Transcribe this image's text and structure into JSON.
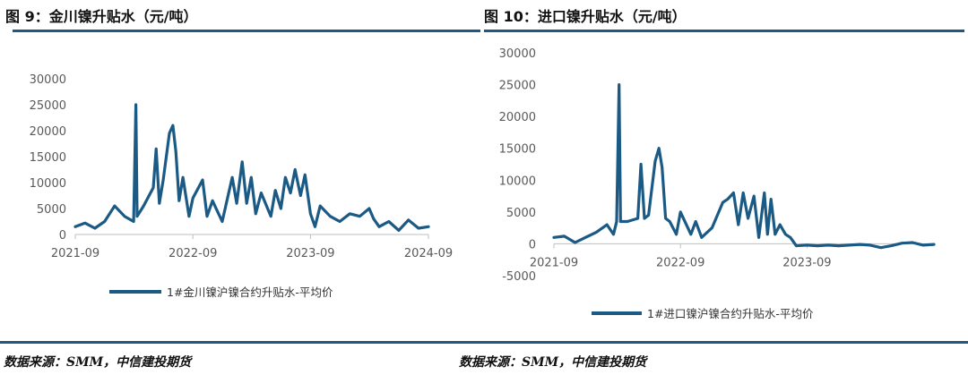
{
  "figures": [
    {
      "title": "图 9：金川镍升贴水（元/吨）",
      "source": "数据来源：SMM，中信建投期货"
    },
    {
      "title": "图 10：进口镍升贴水（元/吨）",
      "source": "数据来源：SMM，中信建投期货"
    }
  ],
  "colors": {
    "rule": "#1f5785",
    "series": "#1a5a84",
    "axis": "#bfbfbf"
  },
  "chart_data": [
    {
      "type": "line",
      "title": "",
      "xlabel": "",
      "ylabel": "",
      "ylim": [
        0,
        30000
      ],
      "yticks": [
        0,
        5000,
        10000,
        15000,
        20000,
        25000,
        30000
      ],
      "xlim": [
        "2021-09",
        "2024-09"
      ],
      "xticks": [
        "2021-09",
        "2022-09",
        "2023-09",
        "2024-09"
      ],
      "grid": false,
      "legend_position": "bottom",
      "series": [
        {
          "name": "1#金川镍沪镍合约升贴水-平均价",
          "points": [
            [
              "2021-09",
              1500
            ],
            [
              "2021-10",
              2200
            ],
            [
              "2021-11",
              1200
            ],
            [
              "2021-12",
              2500
            ],
            [
              "2022-01",
              5500
            ],
            [
              "2022-02",
              3500
            ],
            [
              "2022-03-01",
              2500
            ],
            [
              "2022-03-08",
              25000
            ],
            [
              "2022-03-12",
              3500
            ],
            [
              "2022-04",
              5500
            ],
            [
              "2022-05-01",
              9000
            ],
            [
              "2022-05-10",
              16500
            ],
            [
              "2022-05-20",
              6000
            ],
            [
              "2022-06",
              10500
            ],
            [
              "2022-06-20",
              19500
            ],
            [
              "2022-07-01",
              21000
            ],
            [
              "2022-07-10",
              16000
            ],
            [
              "2022-07-20",
              6500
            ],
            [
              "2022-08",
              11000
            ],
            [
              "2022-08-20",
              3500
            ],
            [
              "2022-09",
              7000
            ],
            [
              "2022-10-01",
              10500
            ],
            [
              "2022-10-15",
              3500
            ],
            [
              "2022-11",
              6500
            ],
            [
              "2022-12-01",
              2500
            ],
            [
              "2022-12-10",
              5000
            ],
            [
              "2023-01-01",
              11000
            ],
            [
              "2023-01-15",
              6000
            ],
            [
              "2023-02-01",
              14000
            ],
            [
              "2023-02-15",
              6000
            ],
            [
              "2023-03-01",
              11000
            ],
            [
              "2023-03-15",
              4000
            ],
            [
              "2023-04",
              8000
            ],
            [
              "2023-05-01",
              3500
            ],
            [
              "2023-05-15",
              8500
            ],
            [
              "2023-06-01",
              5000
            ],
            [
              "2023-06-15",
              11000
            ],
            [
              "2023-07-01",
              8000
            ],
            [
              "2023-07-15",
              12500
            ],
            [
              "2023-08-01",
              7500
            ],
            [
              "2023-08-15",
              11500
            ],
            [
              "2023-09-01",
              4000
            ],
            [
              "2023-09-15",
              1500
            ],
            [
              "2023-10",
              5500
            ],
            [
              "2023-11",
              3500
            ],
            [
              "2023-12",
              2500
            ],
            [
              "2024-01",
              4000
            ],
            [
              "2024-02",
              3500
            ],
            [
              "2024-03-01",
              5000
            ],
            [
              "2024-03-15",
              3000
            ],
            [
              "2024-04",
              1500
            ],
            [
              "2024-05",
              2500
            ],
            [
              "2024-06",
              800
            ],
            [
              "2024-07",
              2800
            ],
            [
              "2024-08",
              1200
            ],
            [
              "2024-09",
              1500
            ]
          ]
        }
      ]
    },
    {
      "type": "line",
      "title": "",
      "xlabel": "",
      "ylabel": "",
      "ylim": [
        -5000,
        30000
      ],
      "yticks": [
        -5000,
        0,
        5000,
        10000,
        15000,
        20000,
        25000,
        30000
      ],
      "xlim": [
        "2021-09",
        "2024-09"
      ],
      "xticks": [
        "2021-09",
        "2022-09",
        "2023-09"
      ],
      "grid": false,
      "legend_position": "bottom",
      "series": [
        {
          "name": "1#进口镍沪镍合约升贴水-平均价",
          "points": [
            [
              "2021-09",
              1000
            ],
            [
              "2021-10",
              1200
            ],
            [
              "2021-11",
              200
            ],
            [
              "2021-12",
              1000
            ],
            [
              "2022-01",
              1800
            ],
            [
              "2022-02",
              3000
            ],
            [
              "2022-02-20",
              1500
            ],
            [
              "2022-03-01",
              3500
            ],
            [
              "2022-03-08",
              25000
            ],
            [
              "2022-03-12",
              3500
            ],
            [
              "2022-04",
              3500
            ],
            [
              "2022-05-01",
              4000
            ],
            [
              "2022-05-10",
              12500
            ],
            [
              "2022-05-20",
              4000
            ],
            [
              "2022-06",
              4500
            ],
            [
              "2022-06-20",
              13000
            ],
            [
              "2022-07-01",
              15000
            ],
            [
              "2022-07-10",
              12000
            ],
            [
              "2022-07-20",
              4000
            ],
            [
              "2022-08",
              3500
            ],
            [
              "2022-08-20",
              1500
            ],
            [
              "2022-09",
              5000
            ],
            [
              "2022-10-01",
              1500
            ],
            [
              "2022-10-15",
              3500
            ],
            [
              "2022-11",
              1000
            ],
            [
              "2022-12",
              2500
            ],
            [
              "2023-01-01",
              6500
            ],
            [
              "2023-01-15",
              7000
            ],
            [
              "2023-02-01",
              8000
            ],
            [
              "2023-02-15",
              3000
            ],
            [
              "2023-03-01",
              8000
            ],
            [
              "2023-03-15",
              4000
            ],
            [
              "2023-04-01",
              7500
            ],
            [
              "2023-04-15",
              1000
            ],
            [
              "2023-05-01",
              8000
            ],
            [
              "2023-05-10",
              1500
            ],
            [
              "2023-05-20",
              7000
            ],
            [
              "2023-06-01",
              1500
            ],
            [
              "2023-06-15",
              3000
            ],
            [
              "2023-07-01",
              1500
            ],
            [
              "2023-07-15",
              1000
            ],
            [
              "2023-08",
              -300
            ],
            [
              "2023-09",
              -200
            ],
            [
              "2023-10",
              -300
            ],
            [
              "2023-11",
              -200
            ],
            [
              "2023-12",
              -300
            ],
            [
              "2024-01",
              -200
            ],
            [
              "2024-02",
              -100
            ],
            [
              "2024-03",
              -200
            ],
            [
              "2024-04",
              -600
            ],
            [
              "2024-05",
              -300
            ],
            [
              "2024-06",
              100
            ],
            [
              "2024-07",
              200
            ],
            [
              "2024-08",
              -200
            ],
            [
              "2024-09",
              -100
            ]
          ]
        }
      ]
    }
  ]
}
